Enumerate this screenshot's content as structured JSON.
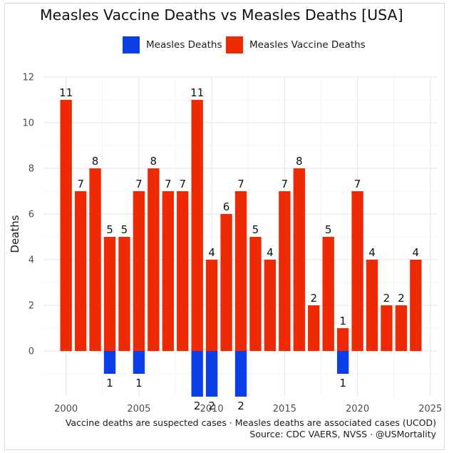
{
  "title": "Measles Vaccine Deaths vs Measles Deaths [USA]",
  "legend": [
    {
      "label": "Measles Deaths",
      "color": "#0b3ee6"
    },
    {
      "label": "Measles Vaccine Deaths",
      "color": "#ee2a05"
    }
  ],
  "caption": {
    "line1": "Vaccine deaths are suspected cases · Measles deaths are associated cases (UCOD)",
    "line2": "Source: CDC VAERS, NVSS · @USMortality"
  },
  "chart_data": {
    "type": "bar",
    "title": "Measles Vaccine Deaths vs Measles Deaths [USA]",
    "xlabel": "",
    "ylabel": "Deaths",
    "xlim": [
      1998.5,
      2025.5
    ],
    "ylim": [
      -2,
      12
    ],
    "xticks": [
      2000,
      2005,
      2010,
      2015,
      2020,
      2025
    ],
    "yticks": [
      0,
      2,
      4,
      6,
      8,
      10,
      12
    ],
    "grid": true,
    "legend_position": "top",
    "note": "Measles Deaths are drawn below zero (negative direction); labels show absolute counts",
    "x": [
      2000,
      2001,
      2002,
      2003,
      2004,
      2005,
      2006,
      2007,
      2008,
      2009,
      2010,
      2011,
      2012,
      2013,
      2014,
      2015,
      2016,
      2017,
      2018,
      2019,
      2020,
      2021,
      2022,
      2023,
      2024
    ],
    "series": [
      {
        "name": "Measles Vaccine Deaths",
        "color": "#ee2a05",
        "direction": "up",
        "values": [
          11,
          7,
          8,
          5,
          5,
          7,
          8,
          7,
          7,
          11,
          4,
          6,
          7,
          5,
          4,
          7,
          8,
          2,
          5,
          1,
          7,
          4,
          2,
          2,
          4
        ]
      },
      {
        "name": "Measles Deaths",
        "color": "#0b3ee6",
        "direction": "down",
        "values": [
          0,
          0,
          0,
          1,
          0,
          1,
          0,
          0,
          0,
          2,
          2,
          0,
          2,
          0,
          0,
          0,
          0,
          0,
          0,
          1,
          0,
          0,
          0,
          0,
          0
        ]
      }
    ]
  }
}
